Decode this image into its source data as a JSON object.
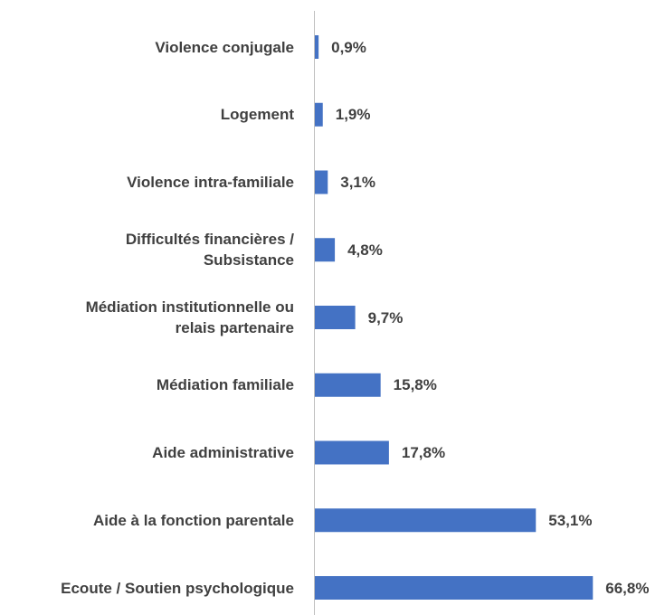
{
  "chart_data": {
    "type": "bar",
    "orientation": "horizontal",
    "categories": [
      "Violence conjugale",
      "Logement",
      "Violence intra-familiale",
      "Difficultés financières /\nSubsistance",
      "Médiation institutionnelle ou\nrelais partenaire",
      "Médiation familiale",
      "Aide administrative",
      "Aide à la fonction parentale",
      "Ecoute / Soutien psychologique"
    ],
    "values": [
      0.9,
      1.9,
      3.1,
      4.8,
      9.7,
      15.8,
      17.8,
      53.1,
      66.8
    ],
    "value_labels": [
      "0,9%",
      "1,9%",
      "3,1%",
      "4,8%",
      "9,7%",
      "15,8%",
      "17,8%",
      "53,1%",
      "66,8%"
    ],
    "color": "#4472c4",
    "xlim": [
      0,
      70
    ]
  }
}
